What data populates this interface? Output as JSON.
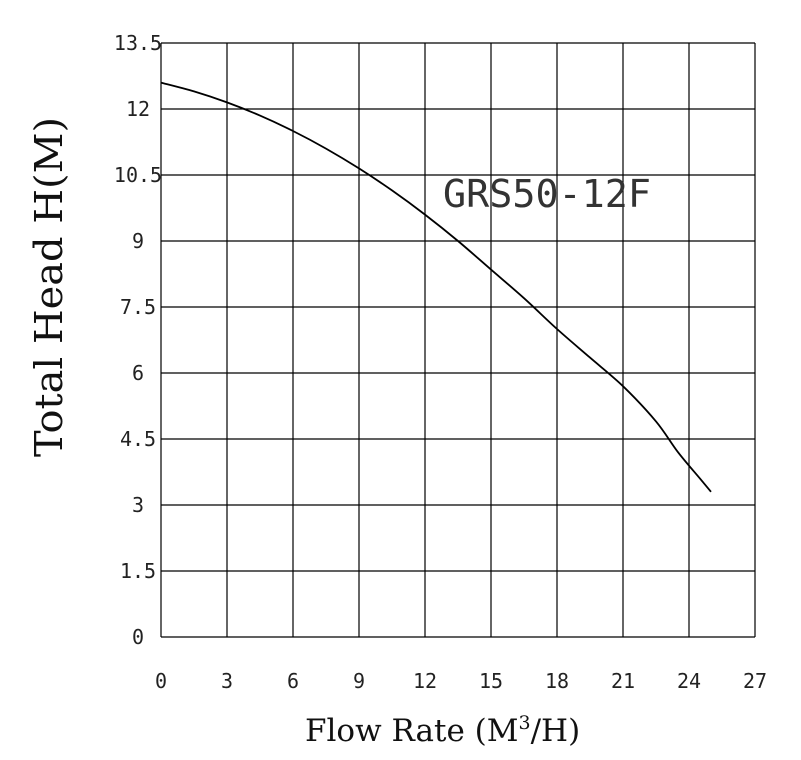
{
  "chart_data": {
    "type": "line",
    "title": "",
    "annotation": "GRS50-12F",
    "xlabel": {
      "main": "Flow Rate (M",
      "sup": "3",
      "tail": "/H)"
    },
    "ylabel": "Total Head H(M)",
    "xlim": [
      0,
      27
    ],
    "ylim": [
      0,
      13.5
    ],
    "x_ticks": [
      "0",
      "3",
      "6",
      "9",
      "12",
      "15",
      "18",
      "21",
      "24",
      "27"
    ],
    "y_ticks": [
      "0",
      "1.5",
      "3",
      "4.5",
      "6",
      "7.5",
      "9",
      "10.5",
      "12",
      "13.5"
    ],
    "grid": true,
    "series": [
      {
        "x": [
          0,
          1.5,
          3,
          4.5,
          6,
          7.5,
          9,
          10.5,
          12,
          13.5,
          15,
          16.5,
          18,
          19.5,
          21,
          22.5,
          23.5,
          24.5,
          25
        ],
        "y": [
          12.6,
          12.4,
          12.15,
          11.85,
          11.5,
          11.1,
          10.65,
          10.15,
          9.6,
          9.0,
          8.35,
          7.7,
          7.0,
          6.35,
          5.7,
          4.9,
          4.2,
          3.6,
          3.3
        ]
      }
    ]
  }
}
